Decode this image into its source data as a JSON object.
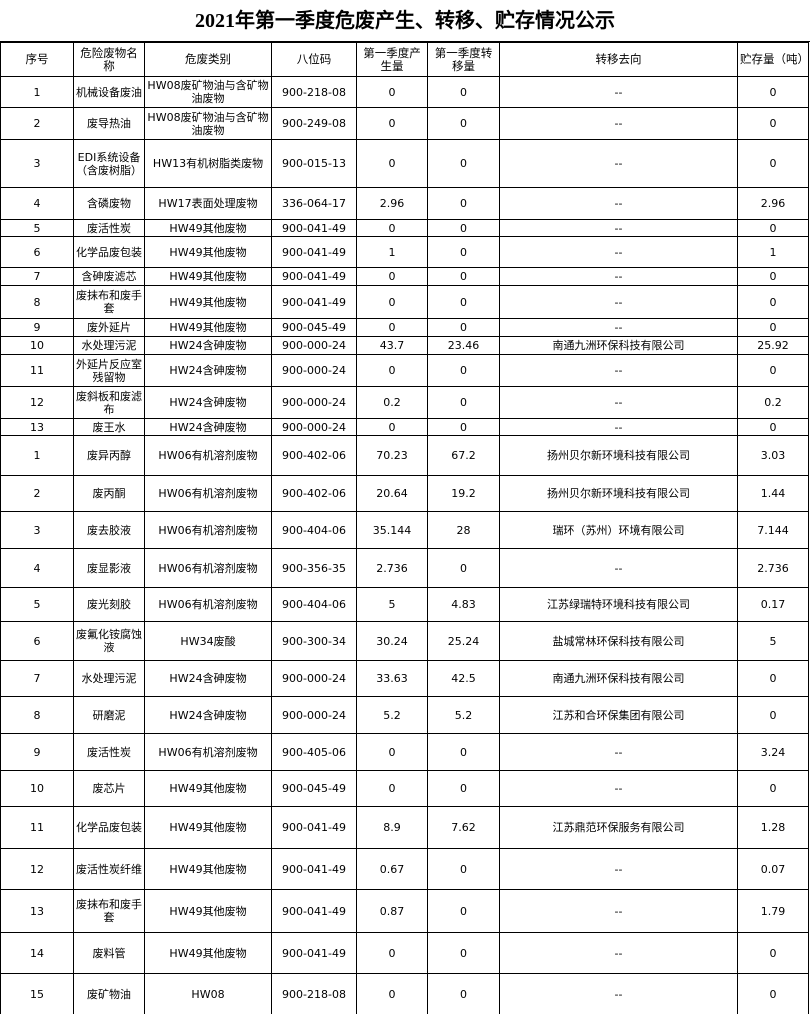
{
  "title": "2021年第一季度危废产生、转移、贮存情况公示",
  "table": {
    "header": [
      "序号",
      "危险废物名称",
      "危废类别",
      "八位码",
      "第一季度产生量",
      "第一季度转移量",
      "转移去向",
      "贮存量（吨）"
    ],
    "rows": [
      [
        "1",
        "机械设备废油",
        "HW08废矿物油与含矿物油废物",
        "900-218-08",
        "0",
        "0",
        "--",
        "0"
      ],
      [
        "2",
        "废导热油",
        "HW08废矿物油与含矿物油废物",
        "900-249-08",
        "0",
        "0",
        "--",
        "0"
      ],
      [
        "3",
        "EDI系统设备（含废树脂）",
        "HW13有机树脂类废物",
        "900-015-13",
        "0",
        "0",
        "--",
        "0"
      ],
      [
        "4",
        "含磷废物",
        "HW17表面处理废物",
        "336-064-17",
        "2.96",
        "0",
        "--",
        "2.96"
      ],
      [
        "5",
        "废活性炭",
        "HW49其他废物",
        "900-041-49",
        "0",
        "0",
        "--",
        "0"
      ],
      [
        "6",
        "化学品废包装",
        "HW49其他废物",
        "900-041-49",
        "1",
        "0",
        "--",
        "1"
      ],
      [
        "7",
        "含砷废滤芯",
        "HW49其他废物",
        "900-041-49",
        "0",
        "0",
        "--",
        "0"
      ],
      [
        "8",
        "废抹布和废手套",
        "HW49其他废物",
        "900-041-49",
        "0",
        "0",
        "--",
        "0"
      ],
      [
        "9",
        "废外延片",
        "HW49其他废物",
        "900-045-49",
        "0",
        "0",
        "--",
        "0"
      ],
      [
        "10",
        "水处理污泥",
        "HW24含砷废物",
        "900-000-24",
        "43.7",
        "23.46",
        "南通九洲环保科技有限公司",
        "25.92"
      ],
      [
        "11",
        "外延片反应室残留物",
        "HW24含砷废物",
        "900-000-24",
        "0",
        "0",
        "--",
        "0"
      ],
      [
        "12",
        "废斜板和废滤布",
        "HW24含砷废物",
        "900-000-24",
        "0.2",
        "0",
        "--",
        "0.2"
      ],
      [
        "13",
        "废王水",
        "HW24含砷废物",
        "900-000-24",
        "0",
        "0",
        "--",
        "0"
      ],
      [
        "1",
        "废异丙醇",
        "HW06有机溶剂废物",
        "900-402-06",
        "70.23",
        "67.2",
        "扬州贝尔新环境科技有限公司",
        "3.03"
      ],
      [
        "2",
        "废丙酮",
        "HW06有机溶剂废物",
        "900-402-06",
        "20.64",
        "19.2",
        "扬州贝尔新环境科技有限公司",
        "1.44"
      ],
      [
        "3",
        "废去胶液",
        "HW06有机溶剂废物",
        "900-404-06",
        "35.144",
        "28",
        "瑞环（苏州）环境有限公司",
        "7.144"
      ],
      [
        "4",
        "废显影液",
        "HW06有机溶剂废物",
        "900-356-35",
        "2.736",
        "0",
        "--",
        "2.736"
      ],
      [
        "5",
        "废光刻胶",
        "HW06有机溶剂废物",
        "900-404-06",
        "5",
        "4.83",
        "江苏绿瑞特环境科技有限公司",
        "0.17"
      ],
      [
        "6",
        "废氟化铵腐蚀液",
        "HW34废酸",
        "900-300-34",
        "30.24",
        "25.24",
        "盐城常林环保科技有限公司",
        "5"
      ],
      [
        "7",
        "水处理污泥",
        "HW24含砷废物",
        "900-000-24",
        "33.63",
        "42.5",
        "南通九洲环保科技有限公司",
        "0"
      ],
      [
        "8",
        "研磨泥",
        "HW24含砷废物",
        "900-000-24",
        "5.2",
        "5.2",
        "江苏和合环保集团有限公司",
        "0"
      ],
      [
        "9",
        "废活性炭",
        "HW06有机溶剂废物",
        "900-405-06",
        "0",
        "0",
        "--",
        "3.24"
      ],
      [
        "10",
        "废芯片",
        "HW49其他废物",
        "900-045-49",
        "0",
        "0",
        "--",
        "0"
      ],
      [
        "11",
        "化学品废包装",
        "HW49其他废物",
        "900-041-49",
        "8.9",
        "7.62",
        "江苏鼎范环保服务有限公司",
        "1.28"
      ],
      [
        "12",
        "废活性炭纤维",
        "HW49其他废物",
        "900-041-49",
        "0.67",
        "0",
        "--",
        "0.07"
      ],
      [
        "13",
        "废抹布和废手套",
        "HW49其他废物",
        "900-041-49",
        "0.87",
        "0",
        "--",
        "1.79"
      ],
      [
        "14",
        "废料管",
        "HW49其他废物",
        "900-041-49",
        "0",
        "0",
        "--",
        "0"
      ],
      [
        "15",
        "废矿物油",
        "HW08",
        "900-218-08",
        "0",
        "0",
        "--",
        "0"
      ]
    ]
  }
}
